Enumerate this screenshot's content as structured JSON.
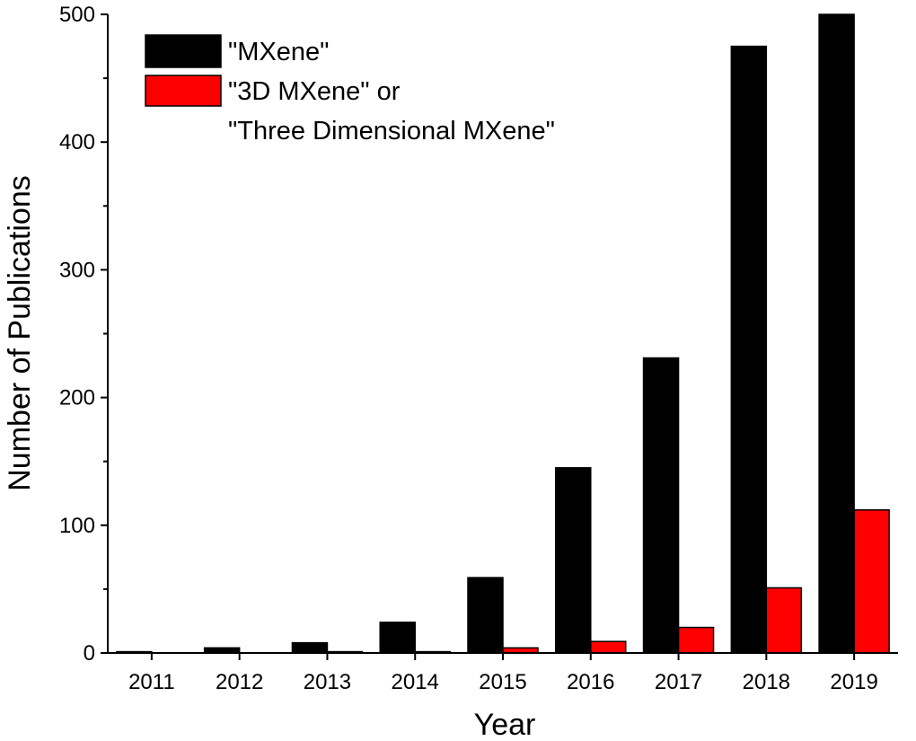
{
  "chart_data": {
    "type": "bar",
    "title": "",
    "xlabel": "Year",
    "ylabel": "Number of Publications",
    "categories": [
      "2011",
      "2012",
      "2013",
      "2014",
      "2015",
      "2016",
      "2017",
      "2018",
      "2019"
    ],
    "ylim": [
      0,
      500
    ],
    "yticks": [
      "0",
      "100",
      "200",
      "300",
      "400",
      "500"
    ],
    "grid": false,
    "legend_position": "top-left",
    "series": [
      {
        "name": "\"MXene\"",
        "color": "#000000",
        "values": [
          1,
          4,
          8,
          24,
          59,
          145,
          231,
          475,
          500
        ]
      },
      {
        "name": "\"3D MXene\" or\n\"Three Dimensional MXene\"",
        "color": "#ff0000",
        "values": [
          0,
          0,
          1,
          1,
          4,
          9,
          20,
          51,
          112
        ]
      }
    ],
    "legend": {
      "entries": [
        {
          "line1": "\"MXene\"",
          "line2": ""
        },
        {
          "line1": "\"3D MXene\" or",
          "line2": "\"Three Dimensional MXene\""
        }
      ]
    }
  }
}
